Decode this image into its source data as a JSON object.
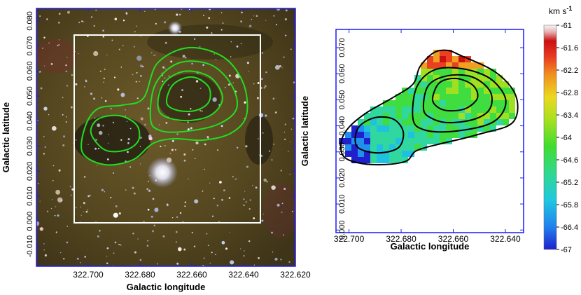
{
  "left_panel": {
    "xlabel": "Galactic longitude",
    "ylabel": "Galactic latitude",
    "xlim": [
      322.72,
      322.62
    ],
    "ylim": [
      -0.018,
      0.085
    ],
    "xticks": [
      "322.700",
      "322.680",
      "322.660",
      "322.640",
      "322.620"
    ],
    "xtick_values": [
      322.7,
      322.68,
      322.66,
      322.64,
      322.62
    ],
    "yticks": [
      "-0.010",
      "0.000",
      "0.010",
      "0.020",
      "0.030",
      "0.040",
      "0.050",
      "0.060",
      "0.070",
      "0.080"
    ],
    "ytick_values": [
      -0.01,
      0.0,
      0.01,
      0.02,
      0.03,
      0.04,
      0.05,
      0.06,
      0.07,
      0.08
    ],
    "frame_color": "#1a1aff",
    "contour_color": "#22dd22",
    "box_color": "#ffffff"
  },
  "right_panel": {
    "xlabel": "Galactic longitude",
    "ylabel": "Galactic latitude",
    "xlim": [
      322.705,
      322.633
    ],
    "ylim": [
      -0.001,
      0.077
    ],
    "xticks": [
      "322.700",
      "322.680",
      "322.660",
      "322.640"
    ],
    "xtick_values": [
      322.7,
      322.68,
      322.66,
      322.64
    ],
    "yticks": [
      "0.000",
      "0.010",
      "0.020",
      "0.030",
      "0.040",
      "0.050",
      "0.060",
      "0.070"
    ],
    "ytick_values": [
      0.0,
      0.01,
      0.02,
      0.03,
      0.04,
      0.05,
      0.06,
      0.07
    ],
    "frame_color": "#1a1aff",
    "contour_color": "#000000"
  },
  "colorbar": {
    "unit": "km s",
    "unit_exp": "-1",
    "ticks": [
      "-61",
      "-61.6",
      "-62.2",
      "-62.8",
      "-63.4",
      "-64",
      "-64.6",
      "-65.2",
      "-65.8",
      "-66.4",
      "-67"
    ],
    "range": [
      -67,
      -61
    ],
    "colors": [
      "#2020cc",
      "#2090ee",
      "#20c0e0",
      "#30d8a0",
      "#40dd40",
      "#a0e020",
      "#e8e020",
      "#f0a020",
      "#e84020",
      "#cc1010",
      "#f0f0f0"
    ]
  }
}
